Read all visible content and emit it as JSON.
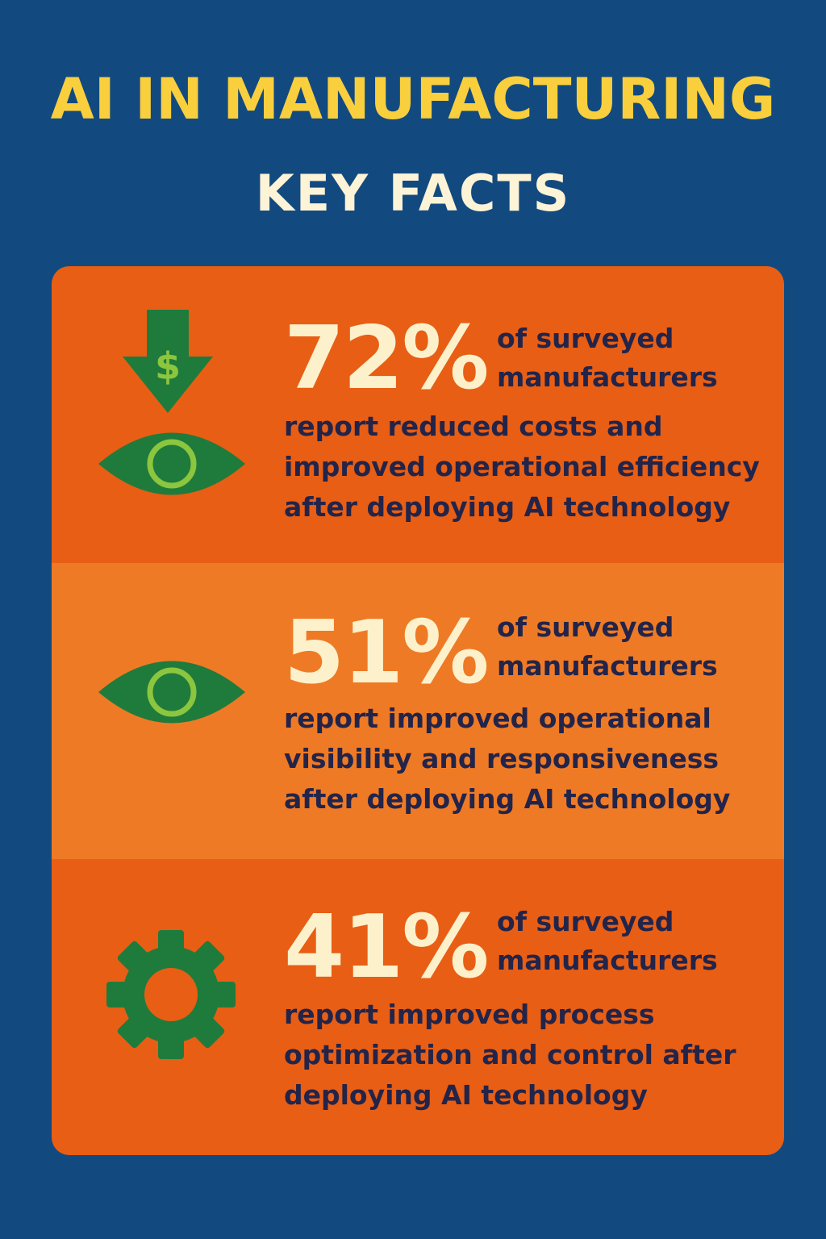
{
  "header": {
    "title": "AI IN MANUFACTURING",
    "subtitle": "KEY FACTS"
  },
  "colors": {
    "background": "#124a80",
    "title": "#f9cf3e",
    "panel_dark": "#e85e14",
    "panel_light": "#ef7a25",
    "icon_green": "#1f7b3c",
    "icon_light_green": "#8cc63f",
    "percent_text": "#fdf1cc",
    "body_text": "#22244a"
  },
  "facts": [
    {
      "icons": [
        "dollar-down-arrow-icon",
        "eye-icon"
      ],
      "percent": "72%",
      "lead": [
        "of surveyed",
        "manufacturers"
      ],
      "description": [
        "report reduced costs and",
        "improved operational efficiency",
        "after deploying AI technology"
      ]
    },
    {
      "icons": [
        "eye-icon"
      ],
      "percent": "51%",
      "lead": [
        "of surveyed",
        "manufacturers"
      ],
      "description": [
        "report improved operational",
        "visibility and responsiveness",
        "after deploying AI technology"
      ]
    },
    {
      "icons": [
        "gear-icon"
      ],
      "percent": "41%",
      "lead": [
        "of surveyed",
        "manufacturers"
      ],
      "description": [
        "report improved process",
        "optimization and control after",
        "deploying AI technology"
      ]
    }
  ]
}
